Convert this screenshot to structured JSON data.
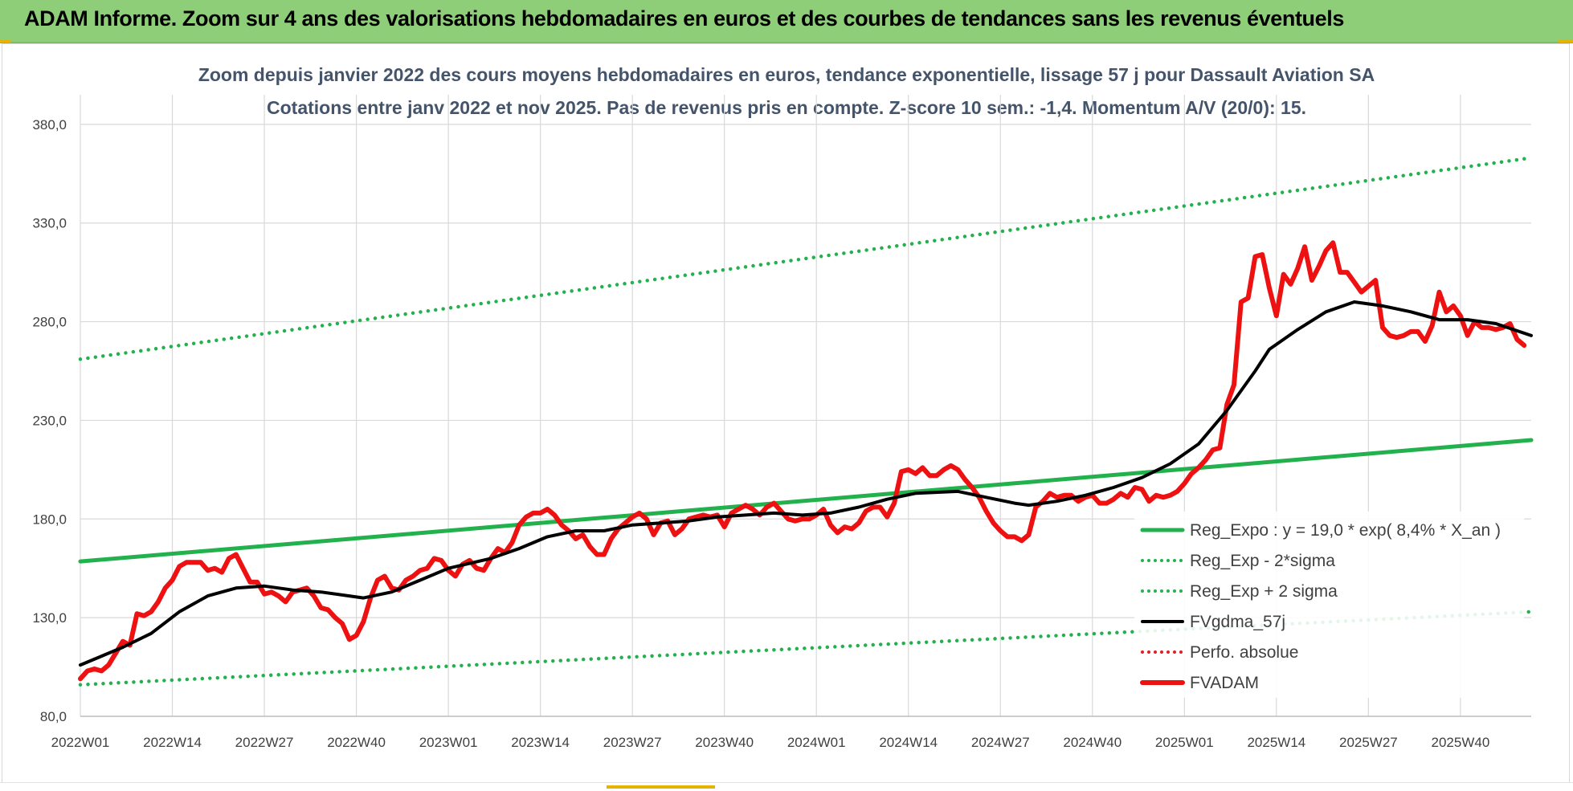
{
  "banner": {
    "title": "ADAM Informe. Zoom sur 4 ans des valorisations hebdomadaires en euros et des courbes de tendances sans les revenus éventuels"
  },
  "chart_data": {
    "type": "line",
    "title": "Zoom depuis janvier 2022 des cours moyens hebdomadaires en euros, tendance exponentielle, lissage 57 j pour Dassault Aviation SA",
    "subtitle": "Cotations entre janv 2022 et nov 2025. Pas de revenus pris en compte. Z-score 10 sem.: -1,4. Momentum A/V (20/0): 15.",
    "xlabel": "",
    "ylabel": "",
    "ylim": [
      80,
      395
    ],
    "y_ticks": [
      "80,0",
      "130,0",
      "180,0",
      "230,0",
      "280,0",
      "330,0",
      "380,0"
    ],
    "x_ticks": [
      "2022W01",
      "2022W14",
      "2022W27",
      "2022W40",
      "2023W01",
      "2023W14",
      "2023W27",
      "2023W40",
      "2024W01",
      "2024W14",
      "2024W27",
      "2024W40",
      "2025W01",
      "2025W14",
      "2025W27",
      "2025W40"
    ],
    "x_tick_index": [
      0,
      13,
      26,
      39,
      52,
      65,
      78,
      91,
      104,
      117,
      130,
      143,
      156,
      169,
      182,
      195
    ],
    "n_weeks": 206,
    "grid": true,
    "legend_position": "lower-right",
    "series": [
      {
        "name": "Reg_Expo : y = 19,0 * exp( 8,4% *  X_an )",
        "color": "#22b14c",
        "style": "solid",
        "width": 5,
        "points": [
          [
            0,
            158.5
          ],
          [
            205,
            220
          ]
        ]
      },
      {
        "name": "Reg_Exp - 2*sigma",
        "color": "#22b14c",
        "style": "dotted",
        "width": 4,
        "points": [
          [
            0,
            96
          ],
          [
            205,
            133
          ]
        ]
      },
      {
        "name": "Reg_Exp + 2 sigma",
        "color": "#22b14c",
        "style": "dotted",
        "width": 4,
        "points": [
          [
            0,
            261
          ],
          [
            205,
            363
          ]
        ]
      },
      {
        "name": "FVgdma_57j",
        "color": "#000000",
        "style": "solid",
        "width": 4,
        "points": [
          [
            0,
            106
          ],
          [
            6,
            115
          ],
          [
            10,
            122
          ],
          [
            14,
            133
          ],
          [
            18,
            141
          ],
          [
            22,
            145
          ],
          [
            26,
            146
          ],
          [
            30,
            144
          ],
          [
            34,
            143
          ],
          [
            38,
            141
          ],
          [
            40,
            140
          ],
          [
            44,
            143
          ],
          [
            48,
            149
          ],
          [
            52,
            155
          ],
          [
            58,
            160
          ],
          [
            62,
            165
          ],
          [
            66,
            171
          ],
          [
            70,
            174
          ],
          [
            74,
            174
          ],
          [
            78,
            177
          ],
          [
            82,
            178
          ],
          [
            86,
            179
          ],
          [
            90,
            181
          ],
          [
            94,
            182
          ],
          [
            98,
            183
          ],
          [
            102,
            182
          ],
          [
            106,
            183
          ],
          [
            110,
            186
          ],
          [
            114,
            190
          ],
          [
            118,
            193
          ],
          [
            124,
            194
          ],
          [
            128,
            191
          ],
          [
            132,
            188
          ],
          [
            134,
            187
          ],
          [
            138,
            189
          ],
          [
            142,
            192
          ],
          [
            146,
            196
          ],
          [
            150,
            201
          ],
          [
            154,
            208
          ],
          [
            158,
            218
          ],
          [
            162,
            235
          ],
          [
            166,
            255
          ],
          [
            168,
            266
          ],
          [
            172,
            276
          ],
          [
            176,
            285
          ],
          [
            180,
            290
          ],
          [
            184,
            288
          ],
          [
            188,
            285
          ],
          [
            192,
            281
          ],
          [
            196,
            281
          ],
          [
            200,
            279
          ],
          [
            205,
            273
          ]
        ]
      },
      {
        "name": "Perfo. absolue",
        "color": "#e31e24",
        "style": "dotted",
        "width": 3,
        "points": []
      },
      {
        "name": "FVADAM",
        "color": "#ee1111",
        "style": "solid",
        "width": 6,
        "points": [
          [
            0,
            99
          ],
          [
            1,
            103
          ],
          [
            2,
            104
          ],
          [
            3,
            103
          ],
          [
            4,
            106
          ],
          [
            5,
            112
          ],
          [
            6,
            118
          ],
          [
            7,
            116
          ],
          [
            8,
            132
          ],
          [
            9,
            131
          ],
          [
            10,
            133
          ],
          [
            11,
            138
          ],
          [
            12,
            145
          ],
          [
            13,
            149
          ],
          [
            14,
            156
          ],
          [
            15,
            158
          ],
          [
            16,
            158
          ],
          [
            17,
            158
          ],
          [
            18,
            154
          ],
          [
            19,
            155
          ],
          [
            20,
            153
          ],
          [
            21,
            160
          ],
          [
            22,
            162
          ],
          [
            23,
            155
          ],
          [
            24,
            148
          ],
          [
            25,
            148
          ],
          [
            26,
            142
          ],
          [
            27,
            143
          ],
          [
            28,
            141
          ],
          [
            29,
            138
          ],
          [
            30,
            143
          ],
          [
            31,
            144
          ],
          [
            32,
            145
          ],
          [
            33,
            141
          ],
          [
            34,
            135
          ],
          [
            35,
            134
          ],
          [
            36,
            130
          ],
          [
            37,
            127
          ],
          [
            38,
            119
          ],
          [
            39,
            121
          ],
          [
            40,
            128
          ],
          [
            41,
            140
          ],
          [
            42,
            149
          ],
          [
            43,
            151
          ],
          [
            44,
            145
          ],
          [
            45,
            144
          ],
          [
            46,
            149
          ],
          [
            47,
            151
          ],
          [
            48,
            154
          ],
          [
            49,
            155
          ],
          [
            50,
            160
          ],
          [
            51,
            159
          ],
          [
            52,
            154
          ],
          [
            53,
            151
          ],
          [
            54,
            157
          ],
          [
            55,
            159
          ],
          [
            56,
            155
          ],
          [
            57,
            154
          ],
          [
            58,
            160
          ],
          [
            59,
            165
          ],
          [
            60,
            163
          ],
          [
            61,
            168
          ],
          [
            62,
            177
          ],
          [
            63,
            181
          ],
          [
            64,
            183
          ],
          [
            65,
            183
          ],
          [
            66,
            185
          ],
          [
            67,
            182
          ],
          [
            68,
            177
          ],
          [
            69,
            174
          ],
          [
            70,
            170
          ],
          [
            71,
            172
          ],
          [
            72,
            166
          ],
          [
            73,
            162
          ],
          [
            74,
            162
          ],
          [
            75,
            170
          ],
          [
            76,
            175
          ],
          [
            77,
            178
          ],
          [
            78,
            181
          ],
          [
            79,
            183
          ],
          [
            80,
            180
          ],
          [
            81,
            172
          ],
          [
            82,
            178
          ],
          [
            83,
            179
          ],
          [
            84,
            172
          ],
          [
            85,
            175
          ],
          [
            86,
            180
          ],
          [
            87,
            181
          ],
          [
            88,
            182
          ],
          [
            89,
            181
          ],
          [
            90,
            182
          ],
          [
            91,
            176
          ],
          [
            92,
            183
          ],
          [
            93,
            185
          ],
          [
            94,
            187
          ],
          [
            95,
            185
          ],
          [
            96,
            182
          ],
          [
            97,
            186
          ],
          [
            98,
            188
          ],
          [
            99,
            184
          ],
          [
            100,
            180
          ],
          [
            101,
            179
          ],
          [
            102,
            180
          ],
          [
            103,
            180
          ],
          [
            104,
            182
          ],
          [
            105,
            185
          ],
          [
            106,
            177
          ],
          [
            107,
            173
          ],
          [
            108,
            176
          ],
          [
            109,
            175
          ],
          [
            110,
            178
          ],
          [
            111,
            184
          ],
          [
            112,
            186
          ],
          [
            113,
            186
          ],
          [
            114,
            181
          ],
          [
            115,
            188
          ],
          [
            116,
            204
          ],
          [
            117,
            205
          ],
          [
            118,
            203
          ],
          [
            119,
            206
          ],
          [
            120,
            202
          ],
          [
            121,
            202
          ],
          [
            122,
            205
          ],
          [
            123,
            207
          ],
          [
            124,
            205
          ],
          [
            125,
            200
          ],
          [
            126,
            196
          ],
          [
            127,
            191
          ],
          [
            128,
            184
          ],
          [
            129,
            178
          ],
          [
            130,
            174
          ],
          [
            131,
            171
          ],
          [
            132,
            171
          ],
          [
            133,
            169
          ],
          [
            134,
            172
          ],
          [
            135,
            186
          ],
          [
            136,
            189
          ],
          [
            137,
            193
          ],
          [
            138,
            191
          ],
          [
            139,
            192
          ],
          [
            140,
            192
          ],
          [
            141,
            189
          ],
          [
            142,
            191
          ],
          [
            143,
            192
          ],
          [
            144,
            188
          ],
          [
            145,
            188
          ],
          [
            146,
            190
          ],
          [
            147,
            193
          ],
          [
            148,
            191
          ],
          [
            149,
            196
          ],
          [
            150,
            195
          ],
          [
            151,
            189
          ],
          [
            152,
            192
          ],
          [
            153,
            191
          ],
          [
            154,
            192
          ],
          [
            155,
            194
          ],
          [
            156,
            198
          ],
          [
            157,
            203
          ],
          [
            158,
            206
          ],
          [
            159,
            210
          ],
          [
            160,
            215
          ],
          [
            161,
            216
          ],
          [
            162,
            238
          ],
          [
            163,
            248
          ],
          [
            164,
            290
          ],
          [
            165,
            292
          ],
          [
            166,
            313
          ],
          [
            167,
            314
          ],
          [
            168,
            297
          ],
          [
            169,
            283
          ],
          [
            170,
            304
          ],
          [
            171,
            299
          ],
          [
            172,
            307
          ],
          [
            173,
            318
          ],
          [
            174,
            301
          ],
          [
            175,
            308
          ],
          [
            176,
            316
          ],
          [
            177,
            320
          ],
          [
            178,
            305
          ],
          [
            179,
            305
          ],
          [
            180,
            300
          ],
          [
            181,
            295
          ],
          [
            182,
            298
          ],
          [
            183,
            301
          ],
          [
            184,
            277
          ],
          [
            185,
            273
          ],
          [
            186,
            272
          ],
          [
            187,
            273
          ],
          [
            188,
            275
          ],
          [
            189,
            275
          ],
          [
            190,
            270
          ],
          [
            191,
            278
          ],
          [
            192,
            295
          ],
          [
            193,
            285
          ],
          [
            194,
            288
          ],
          [
            195,
            283
          ],
          [
            196,
            273
          ],
          [
            197,
            280
          ],
          [
            198,
            277
          ],
          [
            199,
            277
          ],
          [
            200,
            276
          ],
          [
            201,
            277
          ],
          [
            202,
            279
          ],
          [
            203,
            271
          ],
          [
            204,
            268
          ]
        ]
      }
    ]
  }
}
